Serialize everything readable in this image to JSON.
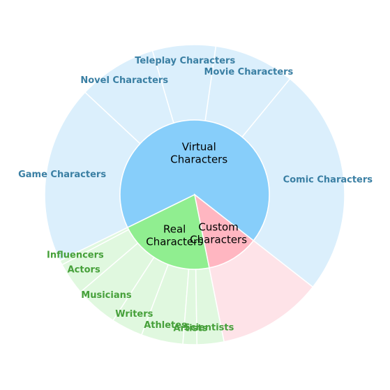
{
  "chart_data": {
    "type": "sunburst",
    "title": "",
    "categories": [
      {
        "name": "Virtual Characters",
        "label_lines": [
          "Virtual",
          "Characters"
        ],
        "value": 67.8,
        "color": "#87cefa",
        "child_color": "#dbeffc",
        "label_color": "#3a7fa3",
        "children": [
          {
            "name": "Comic Characters",
            "value": 24.6
          },
          {
            "name": "Movie Characters",
            "value": 8.7
          },
          {
            "name": "Teleplay Characters",
            "value": 6.8
          },
          {
            "name": "Novel Characters",
            "value": 8.5
          },
          {
            "name": "Game Characters",
            "value": 19.2
          }
        ]
      },
      {
        "name": "Real Characters",
        "label_lines": [
          "Real",
          "Characters"
        ],
        "value": 20.9,
        "color": "#90ee90",
        "child_color": "#e0f8df",
        "label_color": "#46a03a",
        "children": [
          {
            "name": "Influencers",
            "value": 0.5
          },
          {
            "name": "Actors",
            "value": 3.5
          },
          {
            "name": "Musicians",
            "value": 4.6
          },
          {
            "name": "Writers",
            "value": 3.4
          },
          {
            "name": "Athletes",
            "value": 4.5
          },
          {
            "name": "Artists",
            "value": 1.5
          },
          {
            "name": "Scientists",
            "value": 2.9
          }
        ]
      },
      {
        "name": "Custom Characters",
        "label_lines": [
          "Custom",
          "Characters"
        ],
        "value": 11.3,
        "color": "#ffb6c1",
        "child_color": "#fee3e8",
        "label_color": "#cc6677",
        "children": [
          {
            "name": "",
            "value": 11.3
          }
        ]
      }
    ],
    "start_angle_deg": 322,
    "direction": "counterclockwise"
  }
}
